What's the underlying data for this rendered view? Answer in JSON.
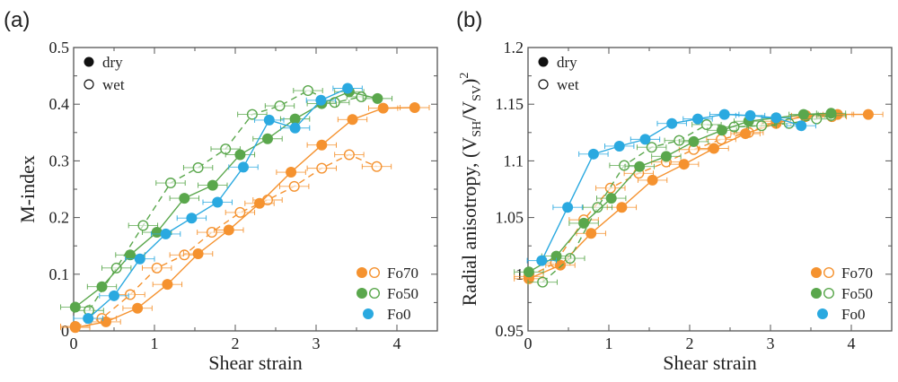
{
  "colors": {
    "Fo70": "#f5922f",
    "Fo50": "#5aa74c",
    "Fo0": "#2aa9e0",
    "frame": "#555555"
  },
  "chart_data": [
    {
      "type": "scatter",
      "panel_label": "(a)",
      "xlabel": "Shear strain",
      "ylabel": "M-index",
      "xlim": [
        0,
        4.5
      ],
      "ylim": [
        0,
        0.5
      ],
      "xticks": [
        0,
        1,
        2,
        3,
        4
      ],
      "xtick_labels": [
        "0",
        "1",
        "2",
        "3",
        "4"
      ],
      "yticks": [
        0,
        0.1,
        0.2,
        0.3,
        0.4,
        0.5
      ],
      "ytick_labels": [
        "0",
        "0.1",
        "0.2",
        "0.3",
        "0.4",
        "0.5"
      ],
      "grid": false,
      "marker_legend": {
        "placement": "top-left",
        "entries": [
          {
            "label": "dry",
            "fill": "filled"
          },
          {
            "label": "wet",
            "fill": "open"
          }
        ]
      },
      "series_legend": {
        "placement": "bottom-right",
        "entries": [
          {
            "label": "Fo70",
            "markers": [
              "filled",
              "open"
            ]
          },
          {
            "label": "Fo50",
            "markers": [
              "filled",
              "open"
            ]
          },
          {
            "label": "Fo0",
            "markers": [
              "filled"
            ]
          }
        ]
      },
      "x_error": 0.18,
      "series": [
        {
          "name": "Fo70",
          "condition": "dry",
          "line": "solid",
          "x": [
            0.02,
            0.4,
            0.79,
            1.16,
            1.54,
            1.92,
            2.3,
            2.69,
            3.07,
            3.45,
            3.83,
            4.22
          ],
          "y": [
            0.006,
            0.016,
            0.04,
            0.082,
            0.136,
            0.178,
            0.225,
            0.28,
            0.328,
            0.373,
            0.393,
            0.394
          ]
        },
        {
          "name": "Fo70",
          "condition": "wet",
          "line": "dashed",
          "x": [
            0.02,
            0.35,
            0.7,
            1.03,
            1.37,
            1.71,
            2.06,
            2.4,
            2.73,
            3.07,
            3.41,
            3.75
          ],
          "y": [
            0.008,
            0.022,
            0.064,
            0.111,
            0.134,
            0.174,
            0.209,
            0.231,
            0.255,
            0.287,
            0.311,
            0.29
          ]
        },
        {
          "name": "Fo50",
          "condition": "dry",
          "line": "solid",
          "x": [
            0.02,
            0.35,
            0.7,
            1.03,
            1.37,
            1.72,
            2.06,
            2.4,
            2.74,
            3.07,
            3.41,
            3.76
          ],
          "y": [
            0.042,
            0.078,
            0.134,
            0.174,
            0.234,
            0.257,
            0.311,
            0.339,
            0.374,
            0.401,
            0.422,
            0.41
          ]
        },
        {
          "name": "Fo50",
          "condition": "wet",
          "line": "dashed",
          "x": [
            0.19,
            0.53,
            0.86,
            1.2,
            1.54,
            1.88,
            2.21,
            2.55,
            2.9,
            3.23,
            3.56
          ],
          "y": [
            0.036,
            0.111,
            0.186,
            0.261,
            0.288,
            0.321,
            0.382,
            0.397,
            0.424,
            0.403,
            0.413
          ]
        },
        {
          "name": "Fo0",
          "condition": "dry",
          "line": "solid",
          "x": [
            0.18,
            0.5,
            0.82,
            1.14,
            1.46,
            1.78,
            2.1,
            2.42,
            2.74,
            3.06,
            3.39
          ],
          "y": [
            0.022,
            0.062,
            0.127,
            0.171,
            0.199,
            0.227,
            0.289,
            0.372,
            0.358,
            0.407,
            0.428
          ]
        }
      ]
    },
    {
      "type": "scatter",
      "panel_label": "(b)",
      "xlabel": "Shear strain",
      "ylabel": {
        "prefix": "Radial anisotropy, (V",
        "sub1": "SH",
        "mid": "/V",
        "sub2": "SV",
        "suffix": ")",
        "sup": "2"
      },
      "xlim": [
        0,
        4.5
      ],
      "ylim": [
        0.95,
        1.2
      ],
      "xticks": [
        0,
        1,
        2,
        3,
        4
      ],
      "xtick_labels": [
        "0",
        "1",
        "2",
        "3",
        "4"
      ],
      "yticks": [
        0.95,
        1.0,
        1.05,
        1.1,
        1.15,
        1.2
      ],
      "ytick_labels": [
        "0.95",
        "1",
        "1.05",
        "1.1",
        "1.15",
        "1.2"
      ],
      "grid": false,
      "marker_legend": {
        "placement": "top-left",
        "entries": [
          {
            "label": "dry",
            "fill": "filled"
          },
          {
            "label": "wet",
            "fill": "open"
          }
        ]
      },
      "series_legend": {
        "placement": "bottom-right",
        "entries": [
          {
            "label": "Fo70",
            "markers": [
              "filled",
              "open"
            ]
          },
          {
            "label": "Fo50",
            "markers": [
              "filled",
              "open"
            ]
          },
          {
            "label": "Fo0",
            "markers": [
              "filled"
            ]
          }
        ]
      },
      "x_error": 0.18,
      "series": [
        {
          "name": "Fo70",
          "condition": "dry",
          "line": "solid",
          "x": [
            0.01,
            0.4,
            0.78,
            1.16,
            1.54,
            1.93,
            2.3,
            2.69,
            3.07,
            3.44,
            3.83,
            4.21
          ],
          "y": [
            0.996,
            1.008,
            1.036,
            1.059,
            1.083,
            1.097,
            1.111,
            1.124,
            1.133,
            1.14,
            1.141,
            1.141
          ]
        },
        {
          "name": "Fo70",
          "condition": "wet",
          "line": "dashed",
          "x": [
            0.01,
            0.34,
            0.69,
            1.02,
            1.37,
            1.71,
            2.05,
            2.39,
            2.73,
            3.07,
            3.43,
            3.76
          ],
          "y": [
            0.998,
            1.01,
            1.048,
            1.076,
            1.089,
            1.099,
            1.11,
            1.119,
            1.125,
            1.135,
            1.139,
            1.139
          ]
        },
        {
          "name": "Fo50",
          "condition": "dry",
          "line": "solid",
          "x": [
            0.01,
            0.35,
            0.69,
            1.03,
            1.38,
            1.71,
            2.05,
            2.4,
            2.73,
            3.07,
            3.41,
            3.75
          ],
          "y": [
            1.002,
            1.016,
            1.045,
            1.067,
            1.095,
            1.104,
            1.117,
            1.127,
            1.135,
            1.138,
            1.141,
            1.142
          ]
        },
        {
          "name": "Fo50",
          "condition": "wet",
          "line": "dashed",
          "x": [
            0.18,
            0.52,
            0.86,
            1.19,
            1.53,
            1.87,
            2.21,
            2.55,
            2.89,
            3.23,
            3.57,
            3.75
          ],
          "y": [
            0.993,
            1.014,
            1.059,
            1.096,
            1.112,
            1.118,
            1.132,
            1.13,
            1.131,
            1.133,
            1.137,
            1.14
          ]
        },
        {
          "name": "Fo0",
          "condition": "dry",
          "line": "solid",
          "x": [
            0.17,
            0.49,
            0.81,
            1.13,
            1.45,
            1.78,
            2.1,
            2.43,
            2.75,
            3.07,
            3.38
          ],
          "y": [
            1.012,
            1.059,
            1.106,
            1.113,
            1.119,
            1.133,
            1.137,
            1.141,
            1.14,
            1.138,
            1.131
          ]
        }
      ]
    }
  ]
}
